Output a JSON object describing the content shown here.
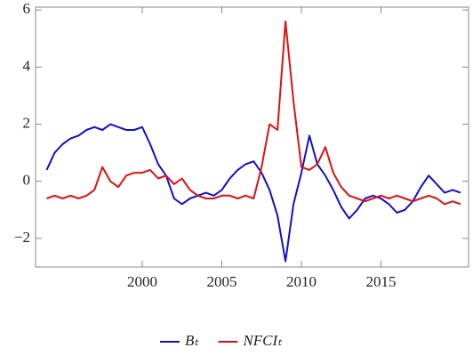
{
  "chart_data": {
    "type": "line",
    "x": [
      1994,
      1994.5,
      1995,
      1995.5,
      1996,
      1996.5,
      1997,
      1997.5,
      1998,
      1998.5,
      1999,
      1999.5,
      2000,
      2000.5,
      2001,
      2001.5,
      2002,
      2002.5,
      2003,
      2003.5,
      2004,
      2004.5,
      2005,
      2005.5,
      2006,
      2006.5,
      2007,
      2007.5,
      2008,
      2008.5,
      2009,
      2009.5,
      2010,
      2010.5,
      2011,
      2011.5,
      2012,
      2012.5,
      2013,
      2013.5,
      2014,
      2014.5,
      2015,
      2015.5,
      2016,
      2016.5,
      2017,
      2017.5,
      2018,
      2018.5,
      2019,
      2019.5,
      2020
    ],
    "series": [
      {
        "name": "Bₜ",
        "color": "#1010d0",
        "values": [
          0.4,
          1.0,
          1.3,
          1.5,
          1.6,
          1.8,
          1.9,
          1.8,
          2.0,
          1.9,
          1.8,
          1.8,
          1.9,
          1.3,
          0.6,
          0.2,
          -0.6,
          -0.8,
          -0.6,
          -0.5,
          -0.4,
          -0.5,
          -0.3,
          0.1,
          0.4,
          0.6,
          0.7,
          0.3,
          -0.3,
          -1.2,
          -2.8,
          -0.8,
          0.3,
          1.6,
          0.6,
          0.2,
          -0.3,
          -0.9,
          -1.3,
          -1.0,
          -0.6,
          -0.5,
          -0.6,
          -0.8,
          -1.1,
          -1.0,
          -0.7,
          -0.2,
          0.2,
          -0.1,
          -0.4,
          -0.3,
          -0.4
        ]
      },
      {
        "name": "NFCIₜ",
        "color": "#e01010",
        "values": [
          -0.6,
          -0.5,
          -0.6,
          -0.5,
          -0.6,
          -0.5,
          -0.3,
          0.5,
          0.0,
          -0.2,
          0.2,
          0.3,
          0.3,
          0.4,
          0.1,
          0.2,
          -0.1,
          0.1,
          -0.3,
          -0.5,
          -0.6,
          -0.6,
          -0.5,
          -0.5,
          -0.6,
          -0.5,
          -0.6,
          0.5,
          2.0,
          1.8,
          5.6,
          2.8,
          0.5,
          0.4,
          0.6,
          1.2,
          0.3,
          -0.2,
          -0.5,
          -0.6,
          -0.7,
          -0.6,
          -0.5,
          -0.6,
          -0.5,
          -0.6,
          -0.7,
          -0.6,
          -0.5,
          -0.6,
          -0.8,
          -0.7,
          -0.8
        ]
      }
    ],
    "xlim": [
      1993.3,
      2020.5
    ],
    "xticks": [
      2000,
      2005,
      2010,
      2015
    ],
    "ylim": [
      -3,
      6.1
    ],
    "yticks": [
      {
        "value": -2,
        "label": "−2"
      },
      0,
      2,
      4,
      6
    ]
  }
}
